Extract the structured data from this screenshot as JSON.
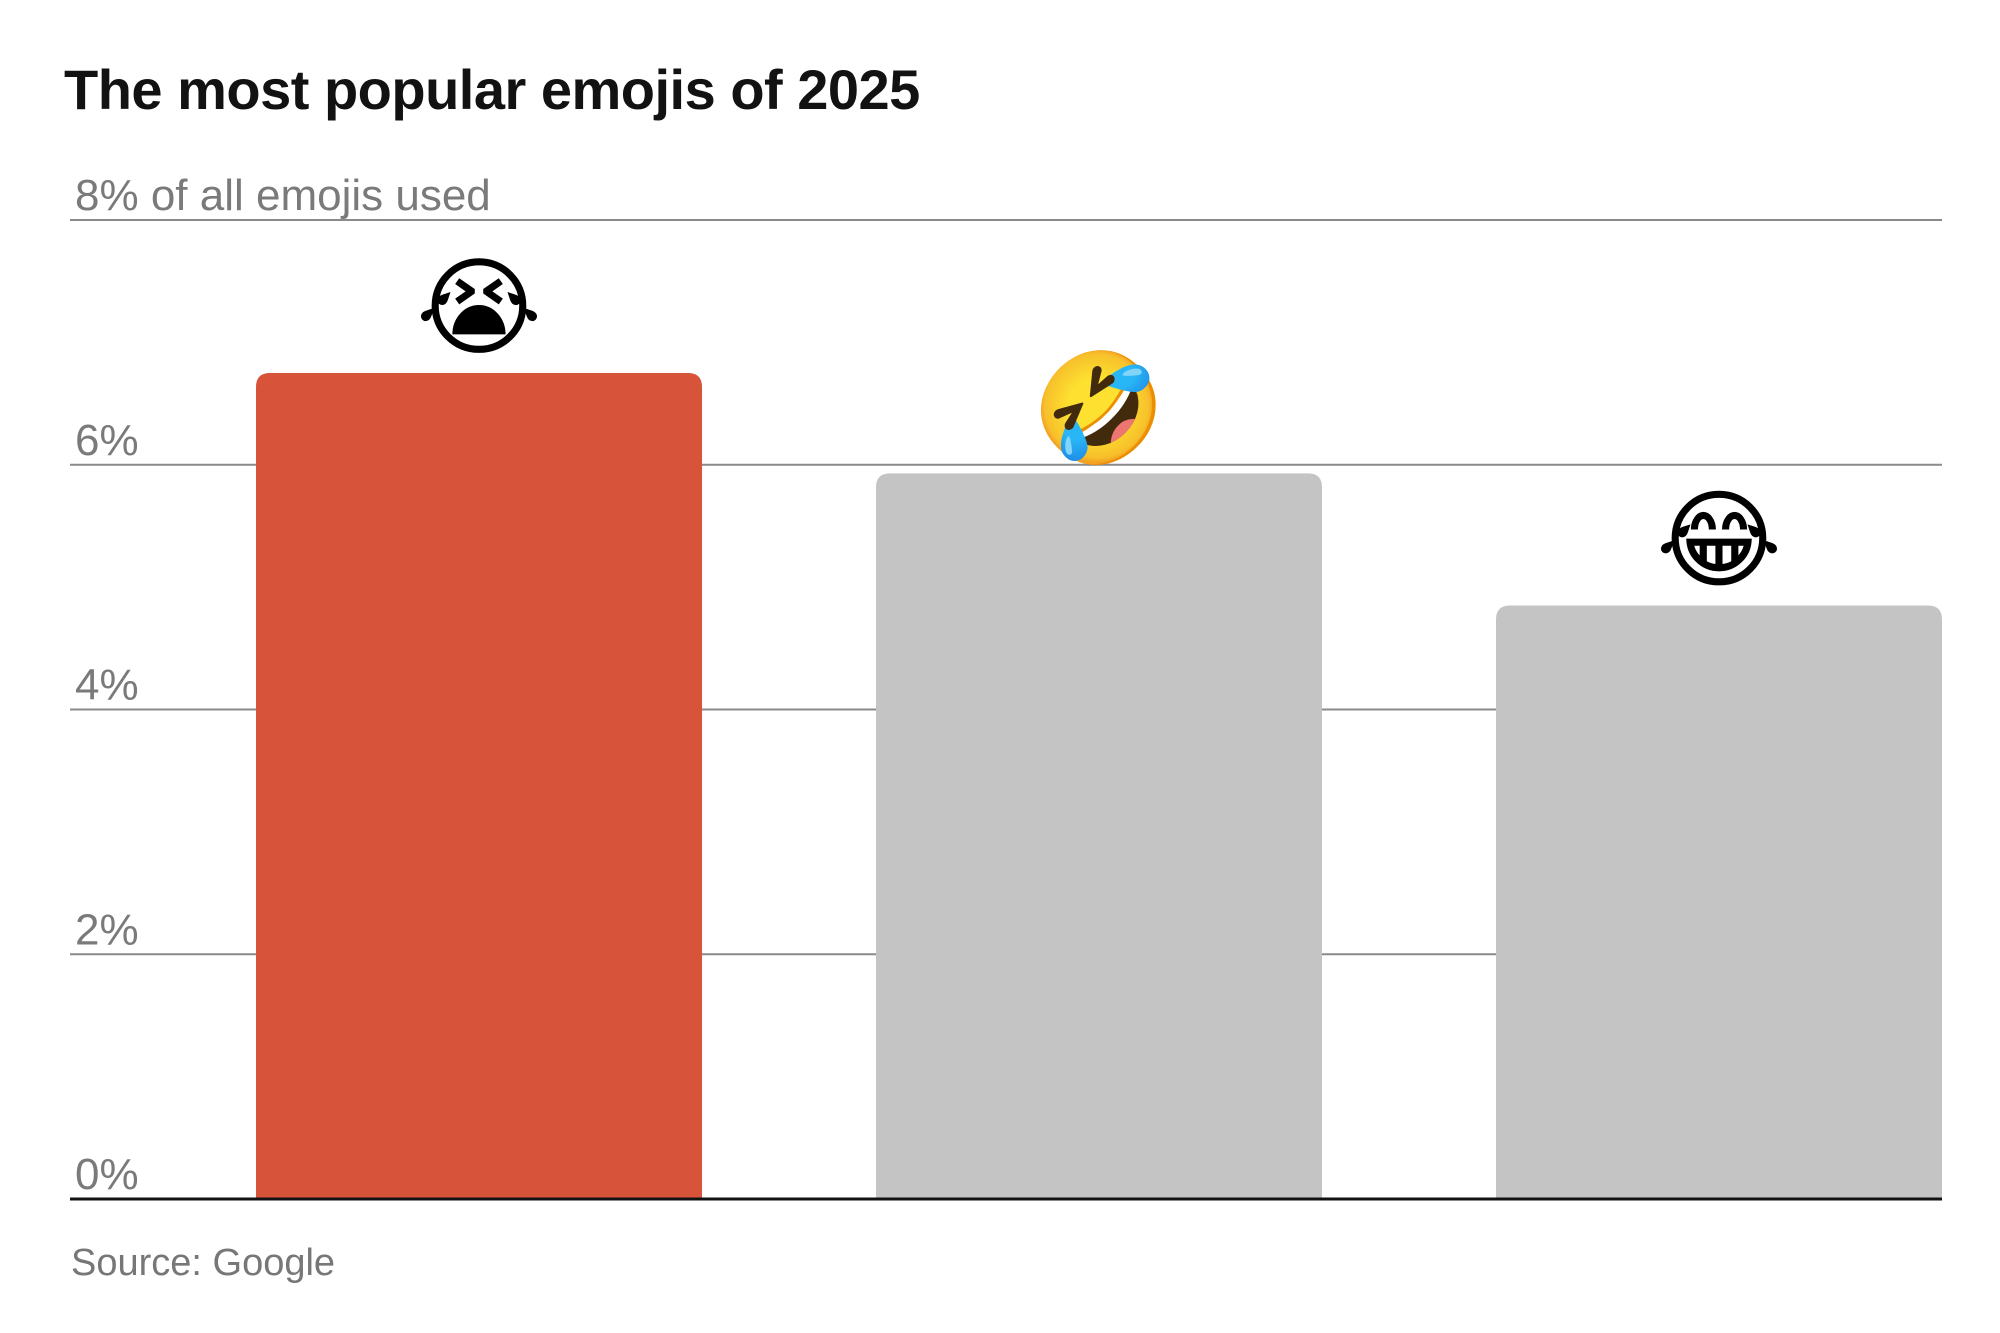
{
  "chart_data": {
    "type": "bar",
    "title": "The most popular emojis of 2025",
    "source": "Source: Google",
    "categories": [
      "😭",
      "🤣",
      "😂"
    ],
    "values": [
      6.75,
      5.93,
      4.85
    ],
    "ylim": [
      0,
      8
    ],
    "yticks": [
      0,
      2,
      4,
      6,
      8
    ],
    "ytick_labels": [
      "0%",
      "2%",
      "4%",
      "6%",
      "8% of all emojis used"
    ],
    "grid": true,
    "colors": {
      "highlight": "#d7533a",
      "default": "#c4c4c4",
      "grid": "#8a8a8a",
      "baseline": "#121212"
    },
    "highlight_index": 0
  }
}
